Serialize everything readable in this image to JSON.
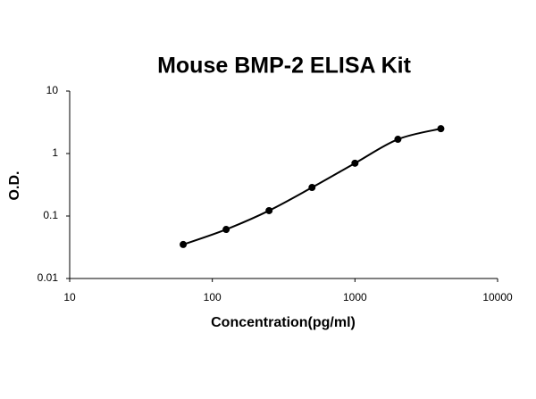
{
  "chart_data": {
    "type": "line",
    "title": "Mouse BMP-2 ELISA Kit",
    "x_label": "Concentration(pg/ml)",
    "y_label": "O.D.",
    "x_log": true,
    "y_log": true,
    "xlim": [
      10,
      10000
    ],
    "ylim": [
      0.01,
      10
    ],
    "xticks": [
      10,
      100,
      1000,
      10000
    ],
    "yticks": [
      0.01,
      0.1,
      1,
      10
    ],
    "series": [
      {
        "color": "#000000",
        "x": [
          62.5,
          125,
          250,
          500,
          1000,
          2000,
          4000
        ],
        "values": [
          0.035,
          0.061,
          0.122,
          0.286,
          0.7,
          1.69,
          2.5
        ]
      }
    ]
  }
}
